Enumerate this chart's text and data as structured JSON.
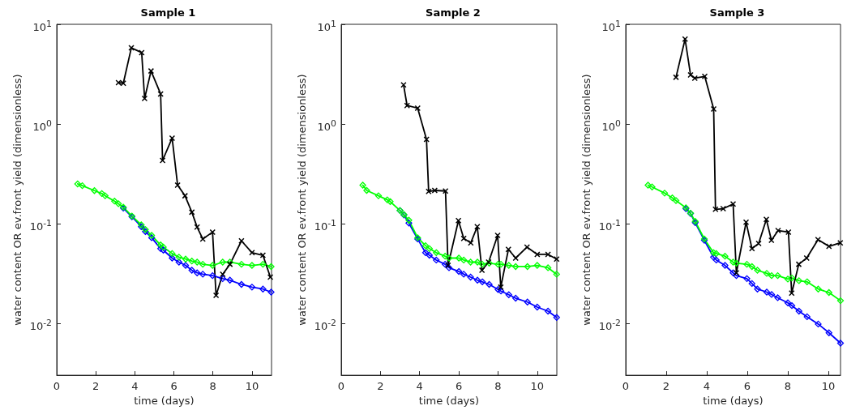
{
  "chart_data": [
    {
      "type": "line",
      "title": "Sample 1",
      "xlabel": "time (days)",
      "ylabel": "water content OR ev.front yield (dimensionless)",
      "log": "y",
      "grid": false,
      "line_style": "solid",
      "xlim": [
        0,
        11
      ],
      "xticks": [
        0,
        2,
        4,
        6,
        8,
        10
      ],
      "ylim": [
        0.003,
        10
      ],
      "yticks": [
        {
          "value": 0.01,
          "label": "10$^{-2}$"
        },
        {
          "value": 0.1,
          "label": "10$^{-1}$"
        },
        {
          "value": 1,
          "label": "10$^{0}$"
        },
        {
          "value": 10,
          "label": "10$^{1}$"
        }
      ],
      "series": [
        {
          "color": "#0000ff",
          "marker": "diamond",
          "x": [
            3.41,
            3.85,
            4.33,
            4.54,
            4.86,
            5.32,
            5.46,
            5.91,
            6.26,
            6.6,
            6.92,
            7.19,
            7.48,
            7.98,
            8.5,
            8.87,
            9.46,
            10.0,
            10.56,
            10.98
          ],
          "values": [
            0.143,
            0.117,
            0.093,
            0.083,
            0.072,
            0.056,
            0.054,
            0.045,
            0.041,
            0.038,
            0.034,
            0.032,
            0.031,
            0.03,
            0.028,
            0.027,
            0.0245,
            0.023,
            0.022,
            0.0205
          ]
        },
        {
          "color": "#00ff00",
          "marker": "diamond",
          "x": [
            1.07,
            1.31,
            1.93,
            2.31,
            2.48,
            2.96,
            3.16,
            3.41,
            3.85,
            4.33,
            4.54,
            4.86,
            5.32,
            5.46,
            5.91,
            6.26,
            6.6,
            6.92,
            7.19,
            7.48,
            7.98,
            8.5,
            8.87,
            9.46,
            10.0,
            10.56,
            10.98
          ],
          "values": [
            0.25,
            0.24,
            0.214,
            0.2,
            0.19,
            0.168,
            0.158,
            0.146,
            0.119,
            0.097,
            0.087,
            0.076,
            0.061,
            0.058,
            0.05,
            0.046,
            0.044,
            0.042,
            0.041,
            0.039,
            0.038,
            0.041,
            0.041,
            0.039,
            0.038,
            0.039,
            0.037
          ]
        },
        {
          "color": "#000000",
          "marker": "cross",
          "x": [
            3.16,
            3.41,
            3.82,
            4.35,
            4.5,
            4.83,
            5.32,
            5.42,
            5.91,
            6.19,
            6.57,
            6.92,
            7.19,
            7.48,
            7.98,
            8.16,
            8.5,
            8.87,
            9.46,
            10.0,
            10.56,
            10.94
          ],
          "values": [
            2.6,
            2.56,
            5.8,
            5.2,
            1.8,
            3.4,
            2.0,
            0.43,
            0.72,
            0.243,
            0.19,
            0.13,
            0.092,
            0.07,
            0.082,
            0.019,
            0.031,
            0.039,
            0.067,
            0.051,
            0.048,
            0.029
          ]
        }
      ]
    },
    {
      "type": "line",
      "title": "Sample 2",
      "xlabel": "time (days)",
      "ylabel": "water content OR ev.front yield (dimensionless)",
      "log": "y",
      "grid": false,
      "line_style": "solid",
      "xlim": [
        0,
        11
      ],
      "xticks": [
        0,
        2,
        4,
        6,
        8,
        10
      ],
      "ylim": [
        0.003,
        10
      ],
      "yticks": [
        {
          "value": 0.01,
          "label": "10$^{-2}$"
        },
        {
          "value": 0.1,
          "label": "10$^{-1}$"
        },
        {
          "value": 1,
          "label": "10$^{0}$"
        },
        {
          "value": 10,
          "label": "10$^{1}$"
        }
      ],
      "series": [
        {
          "color": "#0000ff",
          "marker": "diamond",
          "x": [
            3.0,
            3.2,
            3.45,
            3.9,
            4.3,
            4.5,
            4.85,
            5.3,
            5.5,
            6.0,
            6.25,
            6.6,
            6.95,
            7.2,
            7.55,
            8.0,
            8.15,
            8.55,
            8.9,
            9.5,
            10.0,
            10.55,
            10.99
          ],
          "values": [
            0.135,
            0.122,
            0.101,
            0.07,
            0.051,
            0.048,
            0.043,
            0.039,
            0.036,
            0.033,
            0.031,
            0.029,
            0.027,
            0.026,
            0.0245,
            0.0218,
            0.021,
            0.0193,
            0.0178,
            0.0163,
            0.0145,
            0.0132,
            0.0114
          ]
        },
        {
          "color": "#00ff00",
          "marker": "diamond",
          "x": [
            1.1,
            1.3,
            1.9,
            2.35,
            2.5,
            3.0,
            3.2,
            3.45,
            3.9,
            4.3,
            4.5,
            4.85,
            5.3,
            5.5,
            6.0,
            6.25,
            6.6,
            6.95,
            7.2,
            7.55,
            8.0,
            8.15,
            8.55,
            8.9,
            9.5,
            10.0,
            10.55,
            10.99
          ],
          "values": [
            0.243,
            0.215,
            0.19,
            0.173,
            0.166,
            0.135,
            0.123,
            0.108,
            0.072,
            0.06,
            0.056,
            0.051,
            0.047,
            0.045,
            0.045,
            0.043,
            0.041,
            0.041,
            0.039,
            0.04,
            0.039,
            0.039,
            0.038,
            0.037,
            0.037,
            0.038,
            0.036,
            0.031
          ]
        },
        {
          "color": "#000000",
          "marker": "cross",
          "x": [
            3.18,
            3.36,
            3.9,
            4.35,
            4.46,
            4.77,
            5.32,
            5.45,
            5.98,
            6.25,
            6.61,
            6.94,
            7.18,
            7.52,
            7.98,
            8.14,
            8.53,
            8.9,
            9.48,
            10.0,
            10.55,
            10.99
          ],
          "values": [
            2.47,
            1.53,
            1.44,
            0.7,
            0.21,
            0.215,
            0.212,
            0.038,
            0.107,
            0.071,
            0.064,
            0.093,
            0.034,
            0.041,
            0.076,
            0.023,
            0.055,
            0.045,
            0.058,
            0.049,
            0.049,
            0.044
          ]
        }
      ]
    },
    {
      "type": "line",
      "title": "Sample 3",
      "xlabel": "time (days)",
      "ylabel": "water content OR ev.front yield (dimensionless)",
      "log": "y",
      "grid": false,
      "line_style": "solid",
      "xlim": [
        0,
        10.6
      ],
      "xticks": [
        0,
        2,
        4,
        6,
        8,
        10
      ],
      "ylim": [
        0.003,
        10
      ],
      "yticks": [
        {
          "value": 0.01,
          "label": "10$^{-2}$"
        },
        {
          "value": 0.1,
          "label": "10$^{-1}$"
        },
        {
          "value": 1,
          "label": "10$^{0}$"
        },
        {
          "value": 10,
          "label": "10$^{1}$"
        }
      ],
      "series": [
        {
          "color": "#0000ff",
          "marker": "diamond",
          "x": [
            2.97,
            3.2,
            3.43,
            3.88,
            4.33,
            4.47,
            4.9,
            5.3,
            5.46,
            5.98,
            6.23,
            6.5,
            6.96,
            7.2,
            7.5,
            8.0,
            8.2,
            8.55,
            8.95,
            9.5,
            10.03,
            10.6
          ],
          "values": [
            0.141,
            0.126,
            0.102,
            0.068,
            0.046,
            0.043,
            0.038,
            0.032,
            0.03,
            0.028,
            0.025,
            0.022,
            0.0205,
            0.0194,
            0.018,
            0.016,
            0.015,
            0.0132,
            0.0116,
            0.0098,
            0.008,
            0.0063
          ]
        },
        {
          "color": "#00ff00",
          "marker": "diamond",
          "x": [
            1.1,
            1.3,
            1.92,
            2.3,
            2.48,
            2.97,
            3.2,
            3.43,
            3.88,
            4.33,
            4.47,
            4.9,
            5.3,
            5.46,
            5.98,
            6.23,
            6.5,
            6.96,
            7.2,
            7.5,
            8.0,
            8.2,
            8.55,
            8.95,
            9.5,
            10.03,
            10.6
          ],
          "values": [
            0.243,
            0.233,
            0.202,
            0.181,
            0.17,
            0.144,
            0.127,
            0.105,
            0.07,
            0.051,
            0.05,
            0.047,
            0.041,
            0.04,
            0.039,
            0.037,
            0.034,
            0.0316,
            0.03,
            0.03,
            0.0277,
            0.0284,
            0.0267,
            0.026,
            0.022,
            0.0203,
            0.0168
          ]
        },
        {
          "color": "#000000",
          "marker": "cross",
          "x": [
            2.48,
            2.93,
            3.2,
            3.41,
            3.9,
            4.34,
            4.43,
            4.81,
            5.3,
            5.46,
            5.94,
            6.23,
            6.56,
            6.94,
            7.19,
            7.52,
            8.03,
            8.19,
            8.54,
            8.93,
            9.49,
            10.03,
            10.59
          ],
          "values": [
            2.94,
            7.1,
            3.1,
            2.88,
            3.0,
            1.41,
            0.139,
            0.141,
            0.157,
            0.032,
            0.103,
            0.056,
            0.063,
            0.11,
            0.068,
            0.085,
            0.082,
            0.02,
            0.039,
            0.045,
            0.069,
            0.059,
            0.064
          ]
        }
      ]
    }
  ]
}
